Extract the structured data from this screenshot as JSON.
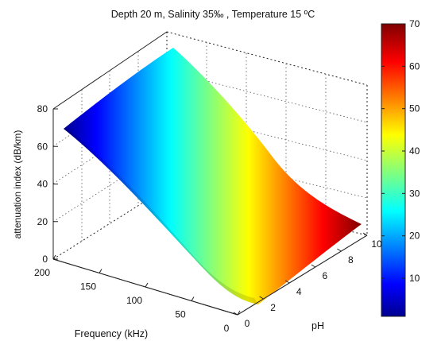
{
  "chart_data": {
    "type": "surface",
    "title": "Depth 20 m, Salinity 35‰ , Temperature 15 ºC",
    "xlabel": "Frequency (kHz)",
    "ylabel": "pH",
    "zlabel": "attenuation index (dB/km)",
    "x_ticks": [
      0,
      50,
      100,
      150,
      200
    ],
    "y_ticks": [
      0,
      2,
      4,
      6,
      8,
      10
    ],
    "z_ticks": [
      0,
      20,
      40,
      60,
      80
    ],
    "xlim": [
      0,
      200
    ],
    "ylim": [
      0,
      10
    ],
    "zlim": [
      0,
      80
    ],
    "grid": true,
    "colormap": "jet",
    "colorbar": {
      "ticks": [
        10,
        20,
        30,
        40,
        50,
        60,
        70
      ],
      "clim": [
        1,
        70
      ]
    },
    "surface_samples": {
      "frequency_khz": [
        0,
        50,
        100,
        150,
        200
      ],
      "ph": [
        0,
        10
      ],
      "attenuation_db_per_km": [
        [
          0,
          0
        ],
        [
          12,
          14
        ],
        [
          33,
          36
        ],
        [
          55,
          60
        ],
        [
          66,
          70
        ]
      ]
    }
  }
}
